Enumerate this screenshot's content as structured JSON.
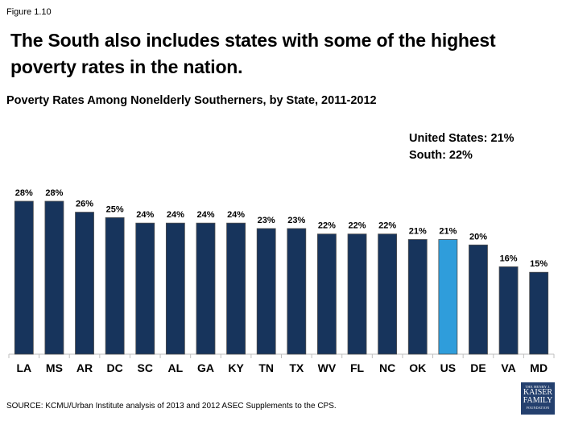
{
  "figure_label": "Figure 1.10",
  "headline": "The South also includes states with some of the highest poverty rates in the nation.",
  "stats": {
    "us_line": "United States: 21%",
    "south_line": "South: 22%"
  },
  "source": "SOURCE: KCMU/Urban Institute analysis of 2013 and 2012 ASEC Supplements to the CPS.",
  "logo": {
    "line1": "THE HENRY J.",
    "line2": "KAISER",
    "line3": "FAMILY",
    "line4": "FOUNDATION"
  },
  "colors": {
    "bar": "#17345c",
    "highlight_bar": "#2f9ddb",
    "logo_bg": "#24406e"
  },
  "chart_data": {
    "type": "bar",
    "title": "Poverty Rates Among Nonelderly Southerners, by State, 2011-2012",
    "xlabel": "",
    "ylabel": "",
    "categories": [
      "LA",
      "MS",
      "AR",
      "DC",
      "SC",
      "AL",
      "GA",
      "KY",
      "TN",
      "TX",
      "WV",
      "FL",
      "NC",
      "OK",
      "US",
      "DE",
      "VA",
      "MD"
    ],
    "values": [
      28,
      28,
      26,
      25,
      24,
      24,
      24,
      24,
      23,
      23,
      22,
      22,
      22,
      21,
      21,
      20,
      16,
      15
    ],
    "data_labels": [
      "28%",
      "28%",
      "26%",
      "25%",
      "24%",
      "24%",
      "24%",
      "24%",
      "23%",
      "23%",
      "22%",
      "22%",
      "22%",
      "21%",
      "21%",
      "20%",
      "16%",
      "15%"
    ],
    "highlight": "US",
    "ylim": [
      0,
      28
    ],
    "grid": false,
    "legend": "none"
  }
}
